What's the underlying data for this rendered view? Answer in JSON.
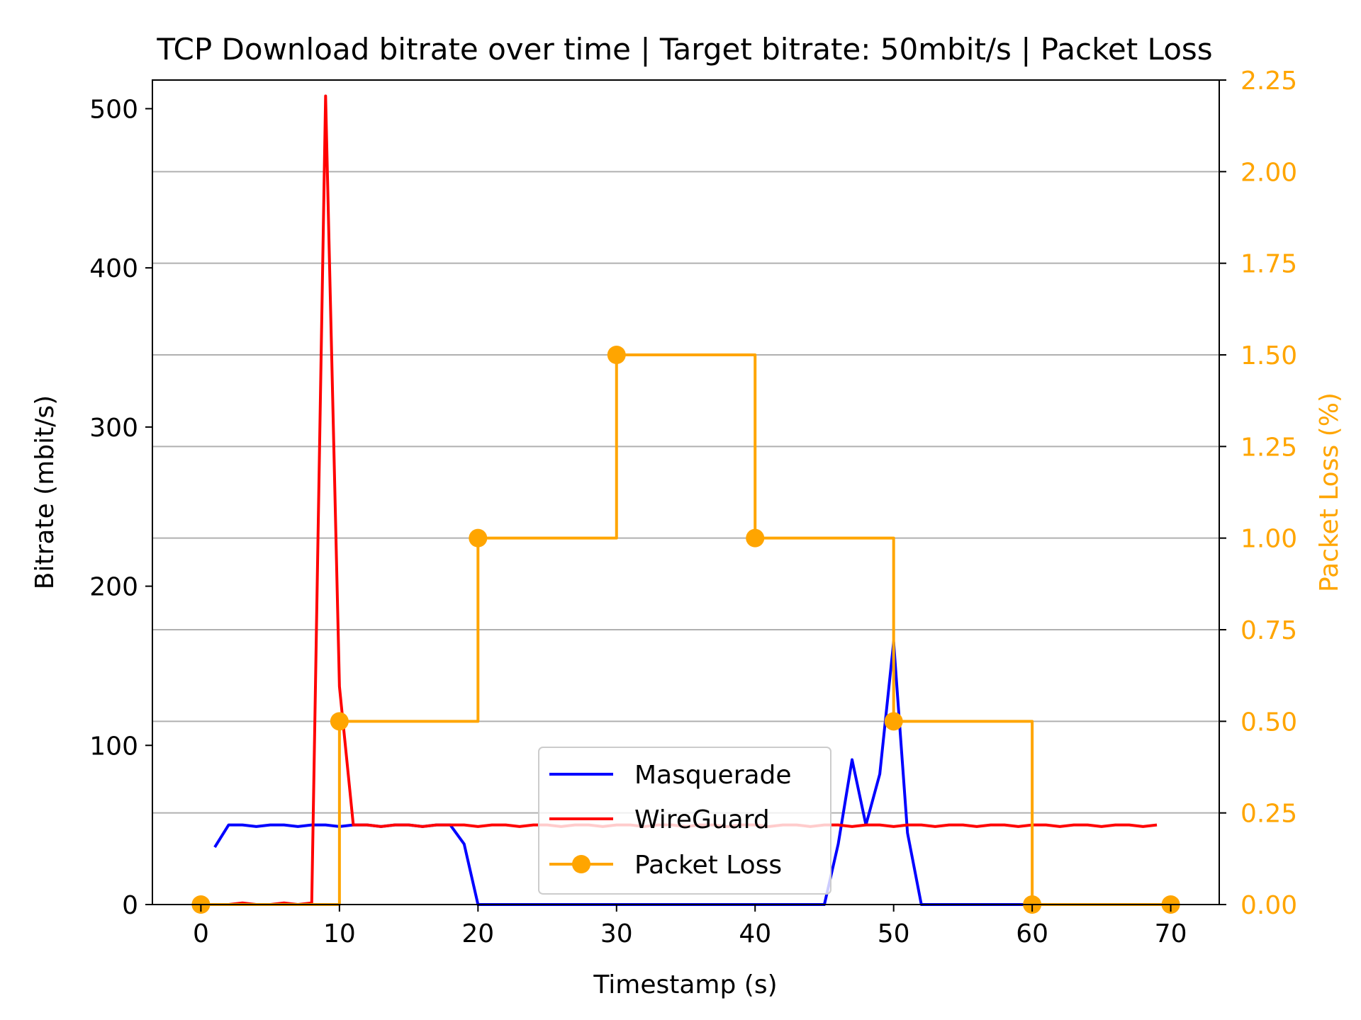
{
  "chart_data": {
    "type": "line",
    "title": "TCP Download bitrate over time | Target bitrate: 50mbit/s | Packet Loss",
    "xlabel": "Timestamp (s)",
    "ylabel": "Bitrate (mbit/s)",
    "y2label": "Packet Loss (%)",
    "xlim": [
      -3.5,
      73.5
    ],
    "ylim": [
      0,
      518
    ],
    "y2lim": [
      0,
      2.25
    ],
    "xticks": [
      "0",
      "10",
      "20",
      "30",
      "40",
      "50",
      "60",
      "70"
    ],
    "yticks": [
      "0",
      "100",
      "200",
      "300",
      "400",
      "500"
    ],
    "y2ticks": [
      "0.00",
      "0.25",
      "0.50",
      "0.75",
      "1.00",
      "1.25",
      "1.50",
      "1.75",
      "2.00",
      "2.25"
    ],
    "grid": "horizontal (secondary axis)",
    "legend_position": "lower-center",
    "colors": {
      "masquerade": "#0000ff",
      "wireguard": "#ff0000",
      "packet_loss": "#ffa500",
      "grid": "#b0b0b0"
    },
    "series": [
      {
        "name": "Masquerade",
        "axis": "left",
        "x": [
          1,
          2,
          3,
          4,
          5,
          6,
          7,
          8,
          9,
          10,
          11,
          12,
          13,
          14,
          15,
          16,
          17,
          18,
          19,
          20,
          21,
          22,
          23,
          24,
          25,
          26,
          27,
          28,
          29,
          30,
          31,
          32,
          33,
          34,
          35,
          36,
          37,
          38,
          39,
          40,
          41,
          42,
          43,
          44,
          45,
          46,
          47,
          48,
          49,
          50,
          51,
          52,
          53,
          54,
          55,
          56,
          57,
          58,
          59,
          60
        ],
        "values": [
          36,
          50,
          50,
          49,
          50,
          50,
          49,
          50,
          50,
          49,
          50,
          50,
          49,
          50,
          50,
          49,
          50,
          50,
          38,
          0,
          0,
          0,
          0,
          0,
          0,
          0,
          0,
          0,
          0,
          0,
          0,
          0,
          0,
          0,
          0,
          0,
          0,
          0,
          0,
          0,
          0,
          0,
          0,
          0,
          0,
          38,
          91,
          50,
          82,
          165,
          45,
          0,
          0,
          0,
          0,
          0,
          0,
          0,
          0,
          0
        ]
      },
      {
        "name": "WireGuard",
        "axis": "left",
        "x": [
          1,
          2,
          3,
          4,
          5,
          6,
          7,
          8,
          9,
          10,
          11,
          12,
          13,
          14,
          15,
          16,
          17,
          18,
          19,
          20,
          21,
          22,
          23,
          24,
          25,
          26,
          27,
          28,
          29,
          30,
          31,
          32,
          33,
          34,
          35,
          36,
          37,
          38,
          39,
          40,
          41,
          42,
          43,
          44,
          45,
          46,
          47,
          48,
          49,
          50,
          51,
          52,
          53,
          54,
          55,
          56,
          57,
          58,
          59,
          60,
          61,
          62,
          63,
          64,
          65,
          66,
          67,
          68,
          69
        ],
        "values": [
          0,
          0,
          1,
          0,
          0,
          1,
          0,
          1,
          508,
          137,
          50,
          50,
          49,
          50,
          50,
          49,
          50,
          50,
          50,
          49,
          50,
          50,
          49,
          50,
          50,
          49,
          50,
          50,
          49,
          50,
          50,
          49,
          50,
          50,
          49,
          50,
          50,
          49,
          50,
          50,
          49,
          50,
          50,
          49,
          50,
          50,
          49,
          50,
          50,
          49,
          50,
          50,
          49,
          50,
          50,
          49,
          50,
          50,
          49,
          50,
          50,
          49,
          50,
          50,
          49,
          50,
          50,
          49,
          50
        ]
      },
      {
        "name": "Packet Loss",
        "axis": "right",
        "step": "post",
        "x": [
          0,
          10,
          20,
          30,
          40,
          50,
          60,
          70
        ],
        "values": [
          0.0,
          0.5,
          1.0,
          1.5,
          1.0,
          0.5,
          0.0,
          0.0
        ]
      }
    ]
  }
}
